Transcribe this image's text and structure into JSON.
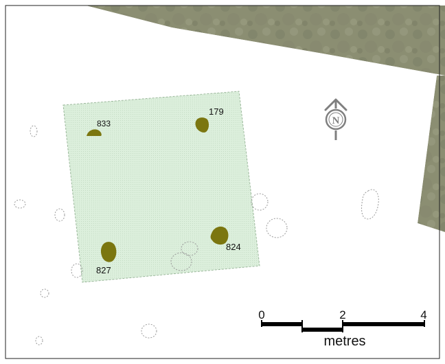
{
  "features": [
    {
      "label": "833"
    },
    {
      "label": "179"
    },
    {
      "label": "824"
    },
    {
      "label": "827"
    }
  ],
  "north_arrow": {
    "letter": "N",
    "icon": "north-arrow-icon"
  },
  "scale_bar": {
    "ticks": [
      "0",
      "2",
      "4"
    ],
    "unit": "metres"
  },
  "colors": {
    "aerial_imagery": "#8b8e72",
    "excavation_area": "#dcefdc",
    "postholes": "#7b7610",
    "north_arrow": "#7f7f7f"
  }
}
